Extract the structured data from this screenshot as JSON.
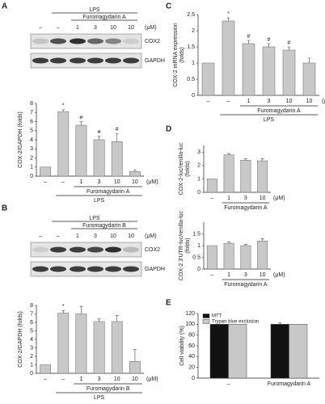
{
  "panel_labels": [
    "A",
    "B",
    "C",
    "D",
    "E"
  ],
  "blots": [
    {
      "treatment": "LPS",
      "compound": "Furomagydarin A",
      "lanes": [
        "–",
        "–",
        "1",
        "3",
        "10",
        "10"
      ],
      "unit": "(μM)",
      "bands": [
        "COX2",
        "GAPDH"
      ]
    },
    {
      "treatment": "LPS",
      "compound": "Furomagydarin B",
      "lanes": [
        "–",
        "–",
        "1",
        "3",
        "10",
        "10"
      ],
      "unit": "(μM)",
      "bands": [
        "COX2",
        "GAPDH"
      ]
    }
  ],
  "chart_data": [
    {
      "type": "bar",
      "y_label": [
        "COX-2/GAPDH (folds)"
      ],
      "categories": [
        "–",
        "–",
        "1",
        "3",
        "10",
        "10"
      ],
      "values": [
        1,
        7.1,
        5.6,
        4.0,
        3.8,
        0.5
      ],
      "errors": [
        0,
        0.2,
        0.4,
        0.4,
        0.9,
        0.2
      ],
      "markers": [
        null,
        "*",
        "#",
        "#",
        "#",
        null
      ],
      "unit": "(μM)",
      "compound_label": "Furomagydarin A",
      "treatment_label": "LPS",
      "color": "#c8c8c8",
      "ylim": [
        0,
        8
      ],
      "yticks": [
        0,
        1,
        2,
        3,
        4,
        5,
        6,
        7,
        8
      ]
    },
    {
      "type": "bar",
      "y_label": [
        "COX-2/GAPDH (folds)"
      ],
      "categories": [
        "–",
        "–",
        "1",
        "3",
        "10",
        "10"
      ],
      "values": [
        1,
        7.1,
        7.0,
        6.1,
        6.1,
        1.4
      ],
      "errors": [
        0,
        0.3,
        0.9,
        0.3,
        0.7,
        1.4
      ],
      "markers": [
        null,
        "*",
        null,
        null,
        null,
        null
      ],
      "unit": "(μM)",
      "compound_label": "Furomagydarin B",
      "treatment_label": "LPS",
      "color": "#c8c8c8",
      "ylim": [
        0,
        8
      ],
      "yticks": [
        0,
        1,
        2,
        3,
        4,
        5,
        6,
        7,
        8
      ]
    },
    {
      "type": "bar",
      "y_label": [
        "COX-2 mRNA expression",
        "(folds)"
      ],
      "categories": [
        "–",
        "–",
        "1",
        "3",
        "10",
        "10"
      ],
      "values": [
        1,
        2.3,
        1.6,
        1.5,
        1.4,
        1.0
      ],
      "errors": [
        0,
        0.1,
        0.1,
        0.1,
        0.1,
        0.15
      ],
      "markers": [
        null,
        "*",
        "#",
        "#",
        "#",
        null
      ],
      "unit": "(μM)",
      "compound_label": "Furomagydarin A",
      "treatment_label": "LPS",
      "color": "#c8c8c8",
      "ylim": [
        0,
        2.5
      ],
      "yticks": [
        0,
        0.5,
        1,
        1.5,
        2,
        2.5
      ]
    },
    {
      "type": "bar",
      "y_label": [
        "COX-2-luc/renilla-luc",
        "(folds)"
      ],
      "categories": [
        "–",
        "1",
        "3",
        "10"
      ],
      "values": [
        1,
        2.8,
        2.4,
        2.35
      ],
      "errors": [
        0,
        0.1,
        0.1,
        0.15
      ],
      "unit": "(μM)",
      "compound_label": "Furomagydarin A",
      "color": "#c8c8c8",
      "ylim": [
        0,
        3.5
      ],
      "yticks": [
        0,
        1,
        2,
        3
      ]
    },
    {
      "type": "bar",
      "y_label": [
        "COX-2 3'UTR-luc/renilla-luc",
        "(folds)"
      ],
      "categories": [
        "–",
        "1",
        "3",
        "10"
      ],
      "values": [
        1,
        1.1,
        1.0,
        1.2
      ],
      "errors": [
        0,
        0.05,
        0.05,
        0.1
      ],
      "unit": "(μM)",
      "compound_label": "Furomagydarin A",
      "color": "#c8c8c8",
      "ylim": [
        0,
        2
      ],
      "yticks": [
        0,
        0.5,
        1,
        1.5
      ]
    },
    {
      "type": "grouped_bar",
      "y_label": [
        "Cell viability (%)"
      ],
      "categories": [
        "–",
        "Furomagydarin A"
      ],
      "series": [
        {
          "name": "MTT",
          "color": "#111111",
          "values": [
            100,
            100
          ],
          "errors": [
            0,
            3
          ]
        },
        {
          "name": "Trypan blue exclusion",
          "color": "#c8c8c8",
          "values": [
            100,
            100
          ],
          "errors": [
            0,
            0
          ]
        }
      ],
      "ylim": [
        0,
        120
      ],
      "yticks": [
        0,
        20,
        40,
        60,
        80,
        100,
        120
      ]
    }
  ]
}
